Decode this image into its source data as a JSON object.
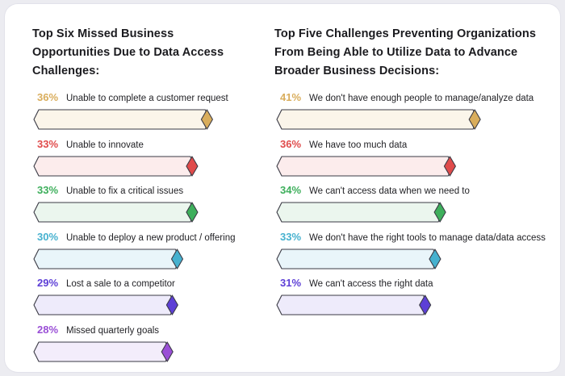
{
  "left_title": "Top Six Missed Business Opportunities Due to Data Access Challenges:",
  "right_title": "Top Five Challenges Preventing Organizations From Being Able to Utilize Data to Advance Broader Business Decisions:",
  "chart_data": [
    {
      "type": "bar",
      "orientation": "horizontal",
      "title": "Top Six Missed Business Opportunities Due to Data Access Challenges:",
      "categories": [
        "Unable to complete a customer request",
        "Unable to innovate",
        "Unable to fix a critical issues",
        "Unable to deploy a new product / offering",
        "Lost a sale to a competitor",
        "Missed quarterly goals"
      ],
      "values": [
        36,
        33,
        33,
        30,
        29,
        28
      ],
      "value_labels": [
        "36%",
        "33%",
        "33%",
        "30%",
        "29%",
        "28%"
      ],
      "unit": "%",
      "colors": [
        "#d9ad5c",
        "#e04b4b",
        "#3eaf5c",
        "#46b1cf",
        "#5d3fd6",
        "#9a4fd6"
      ],
      "fills": [
        "#fbf5ea",
        "#fcecec",
        "#ebf6ee",
        "#e9f5fa",
        "#eeebfb",
        "#f3edfb"
      ]
    },
    {
      "type": "bar",
      "orientation": "horizontal",
      "title": "Top Five Challenges Preventing Organizations From Being Able to Utilize Data to Advance Broader Business Decisions:",
      "categories": [
        "We don't have enough people to manage/analyze data",
        "We have too much data",
        "We can't access data when we need to",
        "We don't have the right tools to manage data/data access",
        "We can't access the right data"
      ],
      "values": [
        41,
        36,
        34,
        33,
        31
      ],
      "value_labels": [
        "41%",
        "36%",
        "34%",
        "33%",
        "31%"
      ],
      "unit": "%",
      "colors": [
        "#d9ad5c",
        "#e04b4b",
        "#3eaf5c",
        "#46b1cf",
        "#5d3fd6"
      ],
      "fills": [
        "#fbf5ea",
        "#fcecec",
        "#ebf6ee",
        "#e9f5fa",
        "#eeebfb"
      ]
    }
  ]
}
